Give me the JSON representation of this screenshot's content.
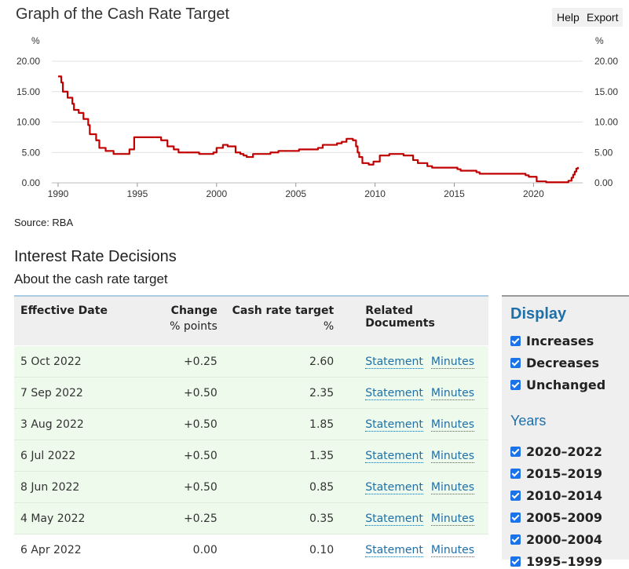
{
  "page": {
    "title": "Graph of the Cash Rate Target",
    "help_label": "Help",
    "export_label": "Export",
    "source": "Source: RBA",
    "section_heading": "Interest Rate Decisions",
    "subheading": "About the cash rate target"
  },
  "chart_data": {
    "type": "line",
    "ylabel": "%",
    "ylim": [
      0,
      20
    ],
    "xlim": [
      1990,
      2023
    ],
    "y_ticks": [
      "20.00",
      "15.00",
      "10.00",
      "5.00",
      "0.00"
    ],
    "x_ticks": [
      "1990",
      "1995",
      "2000",
      "2005",
      "2010",
      "2015",
      "2020"
    ],
    "grid": true,
    "colors": {
      "line": "#c00000",
      "grid": "#e0e0e0"
    },
    "series": [
      {
        "x": [
          1990.0,
          1990.2,
          1990.3,
          1990.6,
          1990.9,
          1991.0,
          1991.3,
          1991.6,
          1991.9,
          1992.0,
          1992.4,
          1992.6,
          1993.0,
          1993.5,
          1994.5,
          1994.8,
          1995.0,
          1996.5,
          1996.9,
          1997.3,
          1997.6,
          1998.0,
          1998.9,
          1999.8,
          2000.0,
          2000.4,
          2000.7,
          2001.2,
          2001.5,
          2001.7,
          2001.9,
          2002.3,
          2002.5,
          2003.4,
          2003.9,
          2004.4,
          2005.2,
          2006.4,
          2006.7,
          2007.6,
          2007.9,
          2008.2,
          2008.6,
          2008.8,
          2008.9,
          2009.0,
          2009.2,
          2009.6,
          2009.9,
          2010.3,
          2010.9,
          2011.8,
          2012.4,
          2012.7,
          2013.3,
          2013.6,
          2015.2,
          2015.4,
          2016.4,
          2016.6,
          2019.5,
          2019.7,
          2020.2,
          2020.8,
          2022.2,
          2022.4,
          2022.5,
          2022.6,
          2022.7,
          2022.8
        ],
        "y": [
          17.5,
          16.5,
          15.0,
          14.0,
          13.0,
          12.0,
          11.5,
          10.5,
          9.5,
          8.0,
          7.0,
          5.75,
          5.25,
          4.75,
          5.5,
          7.5,
          7.5,
          7.0,
          6.0,
          5.5,
          5.0,
          5.0,
          4.75,
          5.0,
          5.75,
          6.25,
          6.0,
          5.0,
          4.75,
          4.5,
          4.25,
          4.75,
          4.75,
          5.0,
          5.25,
          5.25,
          5.5,
          5.75,
          6.25,
          6.5,
          6.75,
          7.25,
          7.0,
          6.0,
          5.0,
          4.25,
          3.25,
          3.0,
          3.5,
          4.5,
          4.75,
          4.5,
          3.75,
          3.25,
          2.75,
          2.5,
          2.25,
          2.0,
          1.75,
          1.5,
          1.25,
          1.0,
          0.25,
          0.1,
          0.35,
          0.85,
          1.35,
          1.85,
          2.35,
          2.6
        ]
      }
    ]
  },
  "table": {
    "headers": {
      "date": "Effective Date",
      "change": "Change",
      "change_sub": "% points",
      "rate": "Cash rate target",
      "rate_sub": "%",
      "docs": "Related Documents"
    },
    "rows": [
      {
        "date": "5 Oct 2022",
        "change": "+0.25",
        "rate": "2.60",
        "doc1": "Statement",
        "doc2": "Minutes"
      },
      {
        "date": "7 Sep 2022",
        "change": "+0.50",
        "rate": "2.35",
        "doc1": "Statement",
        "doc2": "Minutes"
      },
      {
        "date": "3 Aug 2022",
        "change": "+0.50",
        "rate": "1.85",
        "doc1": "Statement",
        "doc2": "Minutes"
      },
      {
        "date": "6 Jul 2022",
        "change": "+0.50",
        "rate": "1.35",
        "doc1": "Statement",
        "doc2": "Minutes"
      },
      {
        "date": "8 Jun 2022",
        "change": "+0.50",
        "rate": "0.85",
        "doc1": "Statement",
        "doc2": "Minutes"
      },
      {
        "date": "4 May 2022",
        "change": "+0.25",
        "rate": "0.35",
        "doc1": "Statement",
        "doc2": "Minutes"
      },
      {
        "date": "6 Apr 2022",
        "change": "0.00",
        "rate": "0.10",
        "doc1": "Statement",
        "doc2": "Minutes"
      }
    ]
  },
  "panel": {
    "display_heading": "Display",
    "display_options": [
      "Increases",
      "Decreases",
      "Unchanged"
    ],
    "years_heading": "Years",
    "years_options": [
      "2020–2022",
      "2015–2019",
      "2010–2014",
      "2005–2009",
      "2000–2004",
      "1995–1999"
    ]
  }
}
